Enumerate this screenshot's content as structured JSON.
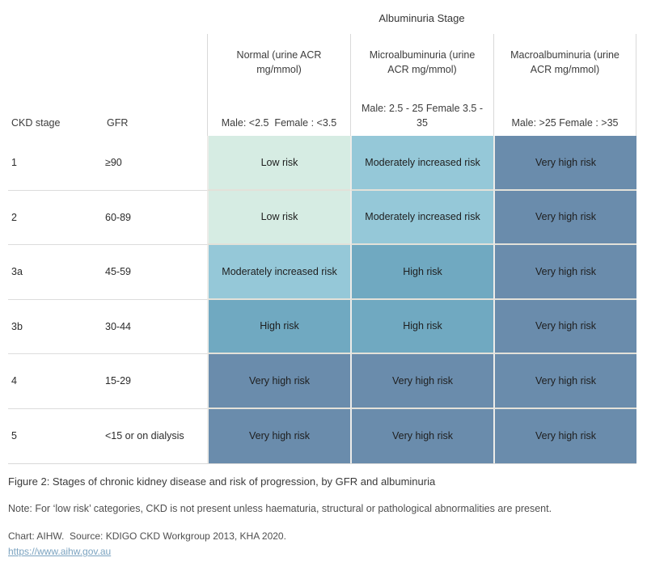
{
  "title": "Albuminuria Stage",
  "colors": {
    "low": "#d6ece3",
    "moderate": "#95c8d8",
    "high": "#70a9c1",
    "very_high": "#6a8cac",
    "divider": "#d9d9d9",
    "link": "#7ba3c0"
  },
  "table": {
    "row_header_cols": [
      "CKD stage",
      "GFR"
    ],
    "columns": [
      {
        "label": "Normal (urine ACR mg/mmol)",
        "sub": "Male: <2.5  Female : <3.5"
      },
      {
        "label": "Microalbuminuria (urine ACR mg/mmol)",
        "sub": "Male: 2.5 - 25 Female 3.5 - 35"
      },
      {
        "label": "Macroalbuminuria (urine ACR mg/mmol)",
        "sub": "Male: >25 Female : >35"
      }
    ],
    "rows": [
      {
        "stage": "1",
        "gfr": "≥90",
        "cells": [
          {
            "text": "Low risk",
            "level": "low"
          },
          {
            "text": "Moderately increased risk",
            "level": "moderate"
          },
          {
            "text": "Very high risk",
            "level": "very_high"
          }
        ]
      },
      {
        "stage": "2",
        "gfr": "60-89",
        "cells": [
          {
            "text": "Low risk",
            "level": "low"
          },
          {
            "text": "Moderately increased risk",
            "level": "moderate"
          },
          {
            "text": "Very high risk",
            "level": "very_high"
          }
        ]
      },
      {
        "stage": "3a",
        "gfr": "45-59",
        "cells": [
          {
            "text": "Moderately increased risk",
            "level": "moderate"
          },
          {
            "text": "High risk",
            "level": "high"
          },
          {
            "text": "Very high risk",
            "level": "very_high"
          }
        ]
      },
      {
        "stage": "3b",
        "gfr": "30-44",
        "cells": [
          {
            "text": "High risk",
            "level": "high"
          },
          {
            "text": "High risk",
            "level": "high"
          },
          {
            "text": "Very high risk",
            "level": "very_high"
          }
        ]
      },
      {
        "stage": "4",
        "gfr": "15-29",
        "cells": [
          {
            "text": "Very high risk",
            "level": "very_high"
          },
          {
            "text": "Very high risk",
            "level": "very_high"
          },
          {
            "text": "Very high risk",
            "level": "very_high"
          }
        ]
      },
      {
        "stage": "5",
        "gfr": "<15 or on dialysis",
        "cells": [
          {
            "text": "Very high risk",
            "level": "very_high"
          },
          {
            "text": "Very high risk",
            "level": "very_high"
          },
          {
            "text": "Very high risk",
            "level": "very_high"
          }
        ]
      }
    ]
  },
  "footer": {
    "caption": "Figure 2: Stages of chronic kidney disease and risk of progression, by GFR and albuminuria",
    "note": "Note: For ‘low risk’ categories, CKD is not present unless haematuria, structural or pathological abnormalities are present.",
    "source": "Chart: AIHW.  Source: KDIGO CKD Workgroup 2013, KHA 2020.",
    "link": "https://www.aihw.gov.au"
  },
  "chart_data": {
    "type": "heatmap",
    "title": "Albuminuria Stage",
    "caption": "Figure 2: Stages of chronic kidney disease and risk of progression, by GFR and albuminuria",
    "x_categories": [
      "Normal (urine ACR mg/mmol)",
      "Microalbuminuria (urine ACR mg/mmol)",
      "Macroalbuminuria (urine ACR mg/mmol)"
    ],
    "x_subcategories": [
      "Male: <2.5 Female : <3.5",
      "Male: 2.5 - 25 Female 3.5 - 35",
      "Male: >25 Female : >35"
    ],
    "y_categories": [
      {
        "ckd_stage": "1",
        "gfr": "≥90"
      },
      {
        "ckd_stage": "2",
        "gfr": "60-89"
      },
      {
        "ckd_stage": "3a",
        "gfr": "45-59"
      },
      {
        "ckd_stage": "3b",
        "gfr": "30-44"
      },
      {
        "ckd_stage": "4",
        "gfr": "15-29"
      },
      {
        "ckd_stage": "5",
        "gfr": "<15 or on dialysis"
      }
    ],
    "values": [
      [
        "Low risk",
        "Moderately increased risk",
        "Very high risk"
      ],
      [
        "Low risk",
        "Moderately increased risk",
        "Very high risk"
      ],
      [
        "Moderately increased risk",
        "High risk",
        "Very high risk"
      ],
      [
        "High risk",
        "High risk",
        "Very high risk"
      ],
      [
        "Very high risk",
        "Very high risk",
        "Very high risk"
      ],
      [
        "Very high risk",
        "Very high risk",
        "Very high risk"
      ]
    ],
    "color_scale": {
      "Low risk": "#d6ece3",
      "Moderately increased risk": "#95c8d8",
      "High risk": "#70a9c1",
      "Very high risk": "#6a8cac"
    },
    "legend_position": "none",
    "grid": "off"
  }
}
